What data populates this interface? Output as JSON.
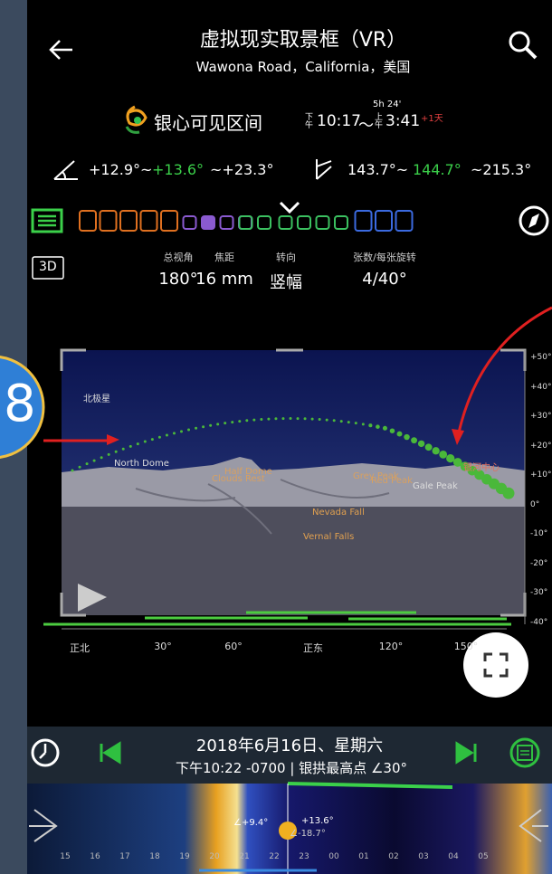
{
  "header": {
    "title": "虚拟现实取景框（VR）",
    "subtitle": "Wawona Road，California，美国"
  },
  "visibility": {
    "label": "银心可见区间",
    "duration": "5h 24'",
    "start_prefix": "下午",
    "start": "10:17",
    "separator": "～",
    "end_prefix": "上午",
    "end": "3:41",
    "next_day": "+1天"
  },
  "elevation": {
    "min": "+12.9°~",
    "current": "+13.6°",
    "max": "~+23.3°"
  },
  "azimuth": {
    "min": "143.7°~",
    "current": "144.7°",
    "max": "~215.3°"
  },
  "mode_3d": "3D",
  "settings": {
    "labels": [
      "总视角",
      "焦距",
      "转向",
      "张数/每张旋转"
    ],
    "values": [
      "180°",
      "16 mm",
      "竖幅",
      "4/40°"
    ]
  },
  "scene": {
    "labels": [
      "北极星",
      "North Dome",
      "Half Dome",
      "Clouds Rest",
      "Grey Peak",
      "Red Peak",
      "Gale Peak",
      "Nevada Fall",
      "Vernal Falls",
      "银河中心"
    ]
  },
  "elevation_axis": [
    "+50°",
    "+40°",
    "+30°",
    "+20°",
    "+10°",
    "0°",
    "-10°",
    "-20°",
    "-30°",
    "-40°"
  ],
  "azimuth_axis": [
    "正北",
    "30°",
    "60°",
    "正东",
    "120°",
    "150°"
  ],
  "date": "2018年6月16日、星期六",
  "time_info": "下午10:22 -0700 | 银拱最高点 ∠30°",
  "timeline": {
    "hours": [
      "15",
      "16",
      "17",
      "18",
      "19",
      "20",
      "21",
      "22",
      "23",
      "00",
      "01",
      "02",
      "03",
      "04",
      "05"
    ],
    "sun_elevation": "∠+9.4°",
    "milky_way_elevation": "+13.6°",
    "moon_elevation": "∠-18.7°"
  },
  "callout": "8"
}
